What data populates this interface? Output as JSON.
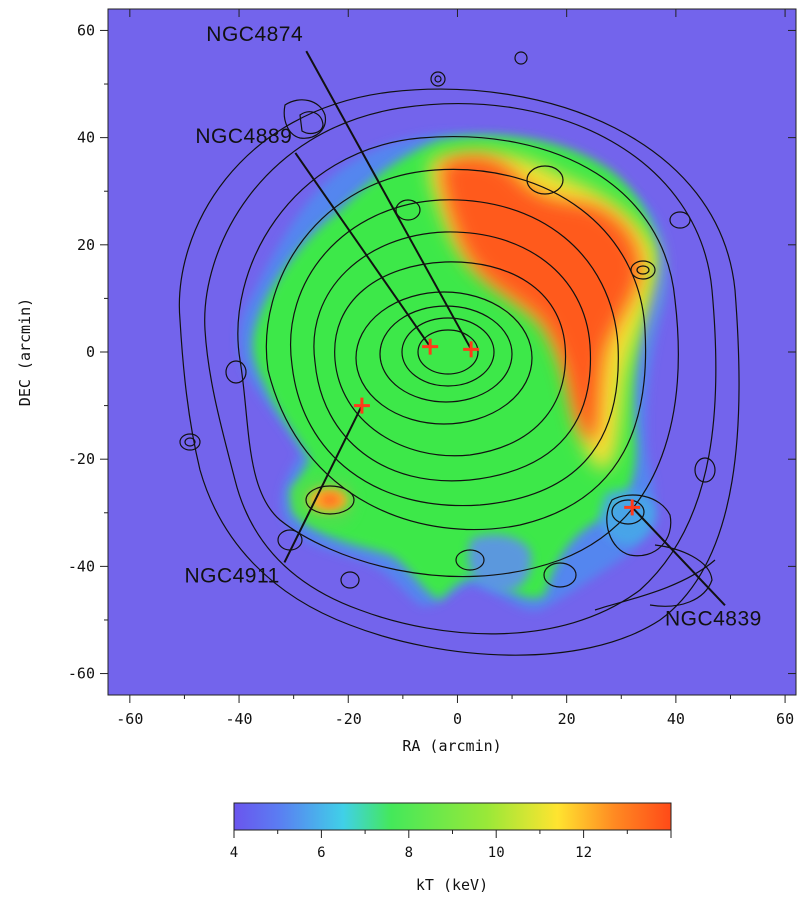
{
  "chart_data": {
    "type": "heatmap",
    "title": "",
    "xlabel": "RA (arcmin)",
    "ylabel": "DEC (arcmin)",
    "xlim": [
      -64,
      62
    ],
    "ylim": [
      -64,
      64
    ],
    "x_ticks": [
      -60,
      -40,
      -20,
      0,
      20,
      40,
      60
    ],
    "y_ticks": [
      60,
      40,
      20,
      0,
      -20,
      -40,
      -60
    ],
    "x_tick_labels": [
      "-60",
      "-40",
      "-20",
      "0",
      "20",
      "40",
      "60"
    ],
    "y_tick_labels": [
      "60",
      "40",
      "20",
      "0",
      "-20",
      "-40",
      "-60"
    ],
    "background_color": "#7364ec",
    "contour_color": "#111111",
    "marker_color": "#ff3a1a",
    "galaxies": [
      {
        "name": "NGC4874",
        "ra": 2.5,
        "dec": 0.5,
        "label_ra": -46,
        "label_dec": 58
      },
      {
        "name": "NGC4889",
        "ra": -5,
        "dec": 1,
        "label_ra": -48,
        "label_dec": 39
      },
      {
        "name": "NGC4911",
        "ra": -17.5,
        "dec": -10,
        "label_ra": -50,
        "label_dec": -43
      },
      {
        "name": "NGC4839",
        "ra": 32,
        "dec": -29,
        "label_ra": 38,
        "label_dec": -51
      }
    ],
    "temperature_regions": [
      {
        "level": "kT ~ 8-10 keV",
        "color": "#3ee84a"
      },
      {
        "level": "kT ~ 12-13 keV",
        "color": "#ff5a1e"
      },
      {
        "level": "kT ~ 11 keV",
        "color": "#ffe030"
      },
      {
        "level": "kT ~ 6-7 keV",
        "color": "#3aa0f0"
      }
    ],
    "colorbar": {
      "label": "kT (keV)",
      "min": 4,
      "max": 14,
      "ticks": [
        4,
        6,
        8,
        10,
        12
      ],
      "tick_labels": [
        "4",
        "6",
        "8",
        "10",
        "12"
      ],
      "gradient": [
        "#6a55ee",
        "#5b7cf2",
        "#40d0e8",
        "#44e85a",
        "#9ae838",
        "#ffe430",
        "#ff8a22",
        "#ff4a18"
      ]
    }
  }
}
